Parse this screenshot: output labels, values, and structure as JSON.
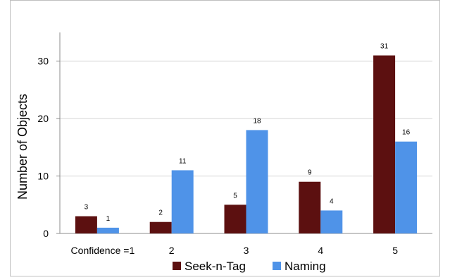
{
  "chart_data": {
    "type": "bar",
    "title": "",
    "xlabel": "",
    "ylabel": "Number of Objects",
    "categories": [
      "Confidence =1",
      "2",
      "3",
      "4",
      "5"
    ],
    "ylim": [
      0,
      35
    ],
    "yticks": [
      0,
      10,
      20,
      30
    ],
    "grid": true,
    "legend_position": "bottom",
    "series": [
      {
        "name": "Seek-n-Tag",
        "color": "#5c1010",
        "values": [
          3,
          2,
          5,
          9,
          31
        ]
      },
      {
        "name": "Naming",
        "color": "#4f93e8",
        "values": [
          1,
          11,
          18,
          4,
          16
        ]
      }
    ]
  }
}
